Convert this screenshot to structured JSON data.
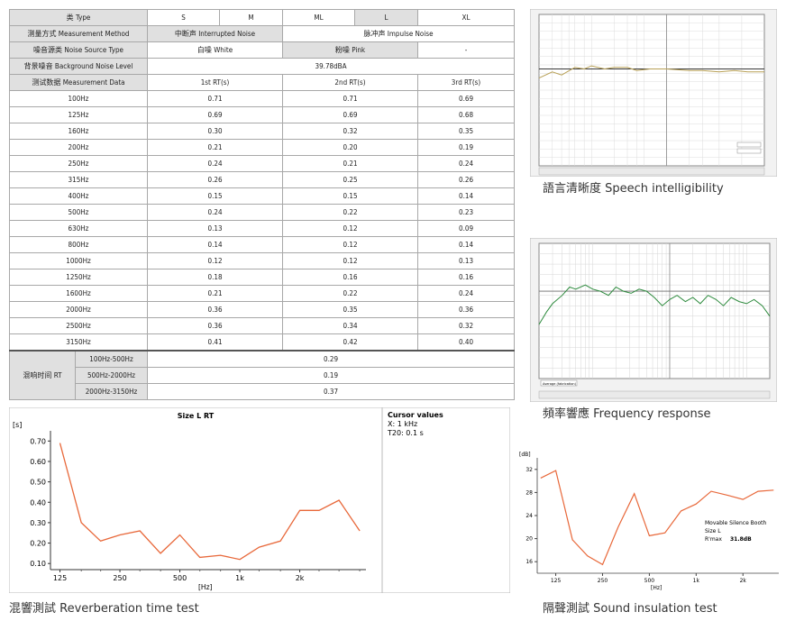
{
  "table": {
    "type_label": "类 Type",
    "sizes": [
      "S",
      "M",
      "ML",
      "L",
      "XL"
    ],
    "method_label": "测量方式 Measurement Method",
    "method_interrupted": "中断声 Interrupted Noise",
    "method_impulse": "脉冲声 Impulse Noise",
    "noise_type_label": "噪音源类 Noise Source Type",
    "noise_white": "白噪 White",
    "noise_pink": "粉噪 Pink",
    "noise_dash": "-",
    "bg_noise_label": "背景噪音 Background Noise Level",
    "bg_noise_value": "39.78dBA",
    "data_label": "测试数据 Measurement Data",
    "rt_headers": [
      "1st RT(s)",
      "2nd RT(s)",
      "3rd RT(s)"
    ],
    "rows": [
      {
        "freq": "100Hz",
        "v": [
          "0.71",
          "0.71",
          "0.69"
        ]
      },
      {
        "freq": "125Hz",
        "v": [
          "0.69",
          "0.69",
          "0.68"
        ]
      },
      {
        "freq": "160Hz",
        "v": [
          "0.30",
          "0.32",
          "0.35"
        ]
      },
      {
        "freq": "200Hz",
        "v": [
          "0.21",
          "0.20",
          "0.19"
        ]
      },
      {
        "freq": "250Hz",
        "v": [
          "0.24",
          "0.21",
          "0.24"
        ]
      },
      {
        "freq": "315Hz",
        "v": [
          "0.26",
          "0.25",
          "0.26"
        ]
      },
      {
        "freq": "400Hz",
        "v": [
          "0.15",
          "0.15",
          "0.14"
        ]
      },
      {
        "freq": "500Hz",
        "v": [
          "0.24",
          "0.22",
          "0.23"
        ]
      },
      {
        "freq": "630Hz",
        "v": [
          "0.13",
          "0.12",
          "0.09"
        ]
      },
      {
        "freq": "800Hz",
        "v": [
          "0.14",
          "0.12",
          "0.14"
        ]
      },
      {
        "freq": "1000Hz",
        "v": [
          "0.12",
          "0.12",
          "0.13"
        ]
      },
      {
        "freq": "1250Hz",
        "v": [
          "0.18",
          "0.16",
          "0.16"
        ]
      },
      {
        "freq": "1600Hz",
        "v": [
          "0.21",
          "0.22",
          "0.24"
        ]
      },
      {
        "freq": "2000Hz",
        "v": [
          "0.36",
          "0.35",
          "0.36"
        ]
      },
      {
        "freq": "2500Hz",
        "v": [
          "0.36",
          "0.34",
          "0.32"
        ]
      },
      {
        "freq": "3150Hz",
        "v": [
          "0.41",
          "0.42",
          "0.40"
        ]
      }
    ],
    "rt_label": "混响时间 RT",
    "rt_bands": [
      {
        "band": "100Hz-500Hz",
        "value": "0.29"
      },
      {
        "band": "500Hz-2000Hz",
        "value": "0.19"
      },
      {
        "band": "2000Hz-3150Hz",
        "value": "0.37"
      }
    ]
  },
  "captions": {
    "reverb": "混響測試 Reverberation time test",
    "speech": "語言清晰度 Speech intelligibility",
    "freq": "頻率響應 Frequency response",
    "sound": "隔聲測試 Sound insulation test"
  },
  "chart_data": [
    {
      "id": "reverb",
      "type": "line",
      "title": "Size L RT",
      "ylabel": "[s]",
      "xlabel": "[Hz]",
      "x_ticks": [
        "125",
        "250",
        "500",
        "1k",
        "2k"
      ],
      "y_ticks": [
        "0.70",
        "0.60",
        "0.50",
        "0.40",
        "0.30",
        "0.20",
        "0.10"
      ],
      "ylim": [
        0.07,
        0.75
      ],
      "cursor_title": "Cursor values",
      "cursor_x": "X: 1 kHz",
      "cursor_t20": "T20: 0.1 s",
      "color": "#e8683a",
      "x": [
        125,
        160,
        200,
        250,
        315,
        400,
        500,
        630,
        800,
        1000,
        1250,
        1600,
        2000,
        2500,
        3150,
        4000
      ],
      "y": [
        0.69,
        0.3,
        0.21,
        0.24,
        0.26,
        0.15,
        0.24,
        0.13,
        0.14,
        0.12,
        0.18,
        0.21,
        0.36,
        0.36,
        0.41,
        0.26
      ]
    },
    {
      "id": "speech",
      "type": "line",
      "color": "#b8a055",
      "ref_color": "#3a3a3a",
      "x": [
        20,
        30,
        40,
        60,
        80,
        100,
        150,
        200,
        300,
        400,
        600,
        1000,
        2000,
        3000,
        5000,
        8000,
        12000,
        20000
      ],
      "y": [
        0.58,
        0.62,
        0.6,
        0.65,
        0.64,
        0.66,
        0.64,
        0.65,
        0.65,
        0.63,
        0.64,
        0.64,
        0.63,
        0.63,
        0.62,
        0.63,
        0.62,
        0.62
      ]
    },
    {
      "id": "freq",
      "type": "line",
      "legend_label": "Average (fabrication)",
      "color": "#2e8b3e",
      "ref_color": "#6e6e6e",
      "x": [
        20,
        25,
        30,
        40,
        50,
        60,
        80,
        100,
        125,
        160,
        200,
        250,
        315,
        400,
        500,
        630,
        800,
        1000,
        1250,
        1600,
        2000,
        2500,
        3150,
        4000,
        5000,
        6300,
        8000,
        10000,
        12500,
        16000,
        20000
      ],
      "y": [
        52,
        64,
        72,
        80,
        88,
        86,
        90,
        86,
        84,
        80,
        88,
        84,
        82,
        86,
        84,
        78,
        70,
        76,
        80,
        74,
        78,
        72,
        80,
        76,
        70,
        78,
        74,
        72,
        76,
        70,
        60
      ]
    },
    {
      "id": "sound",
      "type": "line",
      "ylabel": "[dB]",
      "xlabel": "[Hz]",
      "x_ticks": [
        "125",
        "250",
        "500",
        "1k",
        "2k"
      ],
      "y_ticks": [
        "32",
        "28",
        "24",
        "20",
        "16"
      ],
      "ylim": [
        14,
        34
      ],
      "color": "#e8683a",
      "legend_title": "Movable Silence Booth",
      "legend_size": "Size L",
      "legend_metric": "R'max",
      "legend_value": "31.8dB",
      "x": [
        100,
        125,
        160,
        200,
        250,
        315,
        400,
        500,
        630,
        800,
        1000,
        1250,
        1600,
        2000,
        2500,
        3150
      ],
      "y": [
        30.5,
        31.8,
        19.8,
        17.0,
        15.5,
        22.0,
        27.8,
        20.5,
        21.0,
        24.8,
        26.0,
        28.2,
        27.5,
        26.8,
        28.2,
        28.4
      ]
    }
  ]
}
